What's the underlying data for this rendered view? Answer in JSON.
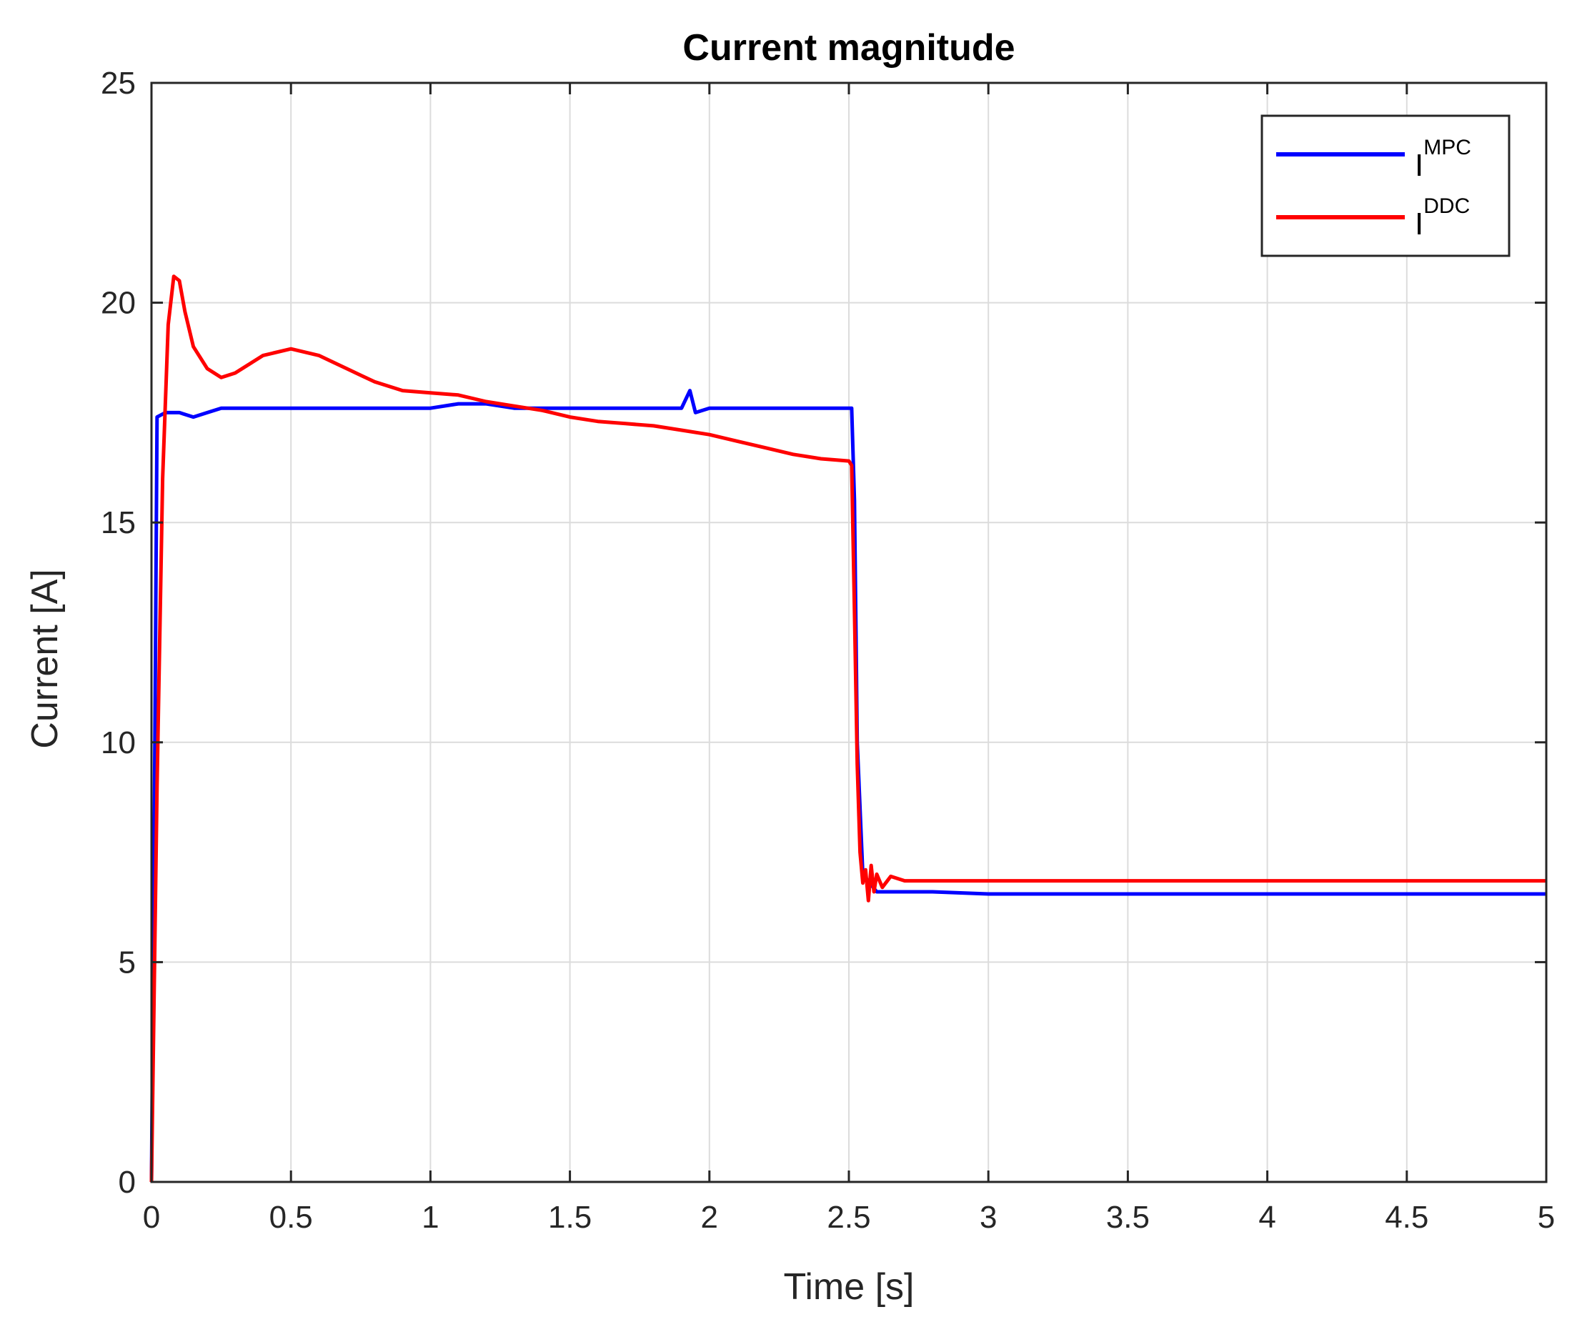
{
  "chart_data": {
    "type": "line",
    "title": "Current magnitude",
    "xlabel": "Time [s]",
    "ylabel": "Current [A]",
    "xlim": [
      0,
      5
    ],
    "ylim": [
      0,
      25
    ],
    "xticks": [
      0,
      0.5,
      1,
      1.5,
      2,
      2.5,
      3,
      3.5,
      4,
      4.5,
      5
    ],
    "xtick_labels": [
      "0",
      "0.5",
      "1",
      "1.5",
      "2",
      "2.5",
      "3",
      "3.5",
      "4",
      "4.5",
      "5"
    ],
    "yticks": [
      0,
      5,
      10,
      15,
      20,
      25
    ],
    "ytick_labels": [
      "0",
      "5",
      "10",
      "15",
      "20",
      "25"
    ],
    "grid": true,
    "legend_position": "top-right",
    "series": [
      {
        "name": "I",
        "name_superscript": "MPC",
        "color": "#0000ff",
        "x": [
          0,
          0.01,
          0.02,
          0.05,
          0.1,
          0.15,
          0.2,
          0.25,
          0.3,
          0.4,
          0.5,
          0.6,
          0.7,
          0.8,
          0.9,
          1.0,
          1.1,
          1.2,
          1.3,
          1.4,
          1.5,
          1.6,
          1.7,
          1.8,
          1.9,
          1.93,
          1.95,
          2.0,
          2.1,
          2.2,
          2.3,
          2.4,
          2.5,
          2.51,
          2.52,
          2.53,
          2.55,
          2.6,
          2.7,
          2.8,
          3.0,
          3.2,
          3.5,
          4.0,
          4.5,
          5.0
        ],
        "y": [
          0,
          8,
          17.4,
          17.5,
          17.5,
          17.4,
          17.5,
          17.6,
          17.6,
          17.6,
          17.6,
          17.6,
          17.6,
          17.6,
          17.6,
          17.6,
          17.7,
          17.7,
          17.6,
          17.6,
          17.6,
          17.6,
          17.6,
          17.6,
          17.6,
          18.0,
          17.5,
          17.6,
          17.6,
          17.6,
          17.6,
          17.6,
          17.6,
          17.6,
          15.5,
          10.0,
          7.0,
          6.6,
          6.6,
          6.6,
          6.55,
          6.55,
          6.55,
          6.55,
          6.55,
          6.55
        ]
      },
      {
        "name": "I",
        "name_superscript": "DDC",
        "color": "#ff0000",
        "x": [
          0,
          0.02,
          0.04,
          0.06,
          0.08,
          0.1,
          0.12,
          0.15,
          0.2,
          0.25,
          0.3,
          0.35,
          0.4,
          0.5,
          0.6,
          0.7,
          0.8,
          0.9,
          1.0,
          1.1,
          1.2,
          1.3,
          1.4,
          1.5,
          1.6,
          1.7,
          1.8,
          1.9,
          2.0,
          2.1,
          2.2,
          2.3,
          2.4,
          2.5,
          2.51,
          2.52,
          2.53,
          2.54,
          2.55,
          2.56,
          2.57,
          2.58,
          2.59,
          2.6,
          2.62,
          2.65,
          2.7,
          3.0,
          3.5,
          4.0,
          4.5,
          5.0
        ],
        "y": [
          0,
          9,
          16,
          19.5,
          20.6,
          20.5,
          19.8,
          19.0,
          18.5,
          18.3,
          18.4,
          18.6,
          18.8,
          18.95,
          18.8,
          18.5,
          18.2,
          18.0,
          17.95,
          17.9,
          17.75,
          17.65,
          17.55,
          17.4,
          17.3,
          17.25,
          17.2,
          17.1,
          17.0,
          16.85,
          16.7,
          16.55,
          16.45,
          16.4,
          16.3,
          13.0,
          9.5,
          7.5,
          6.8,
          7.1,
          6.4,
          7.2,
          6.6,
          7.0,
          6.7,
          6.95,
          6.85,
          6.85,
          6.85,
          6.85,
          6.85,
          6.85
        ]
      }
    ]
  },
  "colors": {
    "axes": "#262626",
    "grid": "#dcdcdc",
    "background": "#ffffff"
  }
}
